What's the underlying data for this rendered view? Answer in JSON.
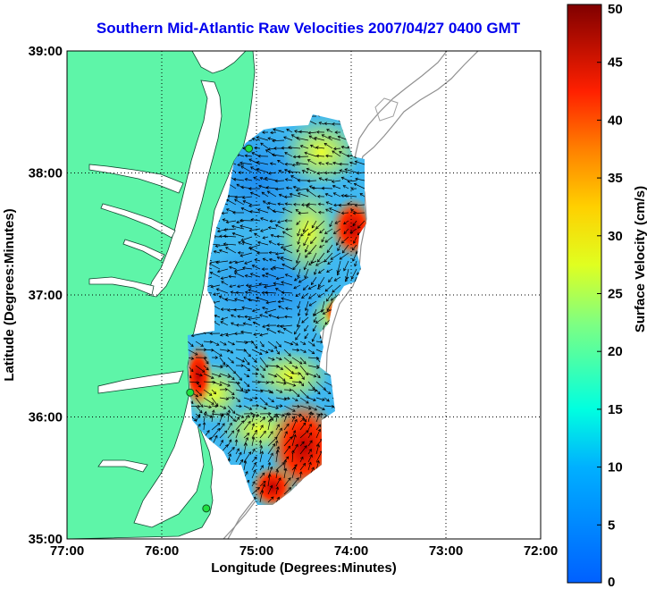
{
  "title": "Southern Mid-Atlantic Raw Velocities 2007/04/27 0400 GMT",
  "map": {
    "xlabel": "Longitude (Degrees:Minutes)",
    "ylabel": "Latitude (Degrees:Minutes)",
    "lon_ticks": [
      "77:00",
      "76:00",
      "75:00",
      "74:00",
      "73:00",
      "72:00"
    ],
    "lat_ticks": [
      "39:00",
      "38:00",
      "37:00",
      "36:00",
      "35:00"
    ],
    "lon_range": [
      -77,
      -72
    ],
    "lat_range": [
      35,
      39
    ],
    "grid": true,
    "land_color": "#5ef5a8",
    "background": "#ffffff",
    "arrow_color": "#000000",
    "stations": [
      {
        "lon": -75.08,
        "lat": 38.2
      },
      {
        "lon": -75.7,
        "lat": 36.2
      },
      {
        "lon": -75.53,
        "lat": 35.25
      }
    ]
  },
  "colorbar": {
    "label": "Surface Velocity (cm/s)",
    "min": 0,
    "max": 50,
    "ticks": [
      "0",
      "5",
      "10",
      "15",
      "20",
      "25",
      "30",
      "35",
      "40",
      "45",
      "50"
    ],
    "colors": [
      "#0080ff",
      "#00d8ff",
      "#80ff80",
      "#ffff00",
      "#ff8000",
      "#ff0000",
      "#800000"
    ]
  }
}
